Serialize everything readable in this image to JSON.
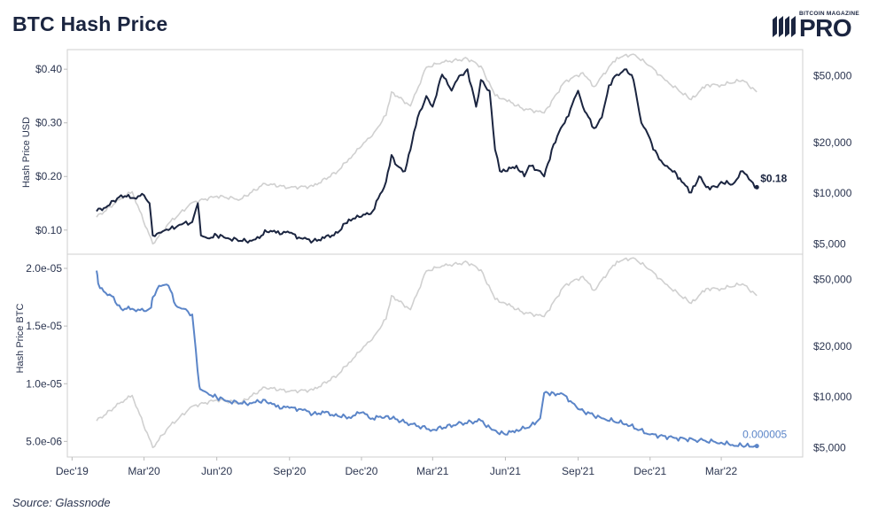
{
  "header": {
    "title": "BTC Hash Price",
    "logo_small": "BITCOIN MAGAZINE",
    "logo_big": "PRO"
  },
  "footer": {
    "source": "Source: Glassnode"
  },
  "colors": {
    "hash_usd": "#1b2540",
    "hash_btc": "#5b85c8",
    "btc_price": "#d0d0d0",
    "grid": "#d8d8d8",
    "text": "#2b3550"
  },
  "chart_data": [
    {
      "type": "line",
      "title": "",
      "ylabel": "Hash Price USD",
      "ylabel_right": "",
      "ylim": [
        0.06,
        0.43
      ],
      "y_ticks": [
        0.1,
        0.2,
        0.3,
        0.4
      ],
      "y_tick_labels": [
        "$0.10",
        "$0.20",
        "$0.30",
        "$0.40"
      ],
      "y_right_scale": "log",
      "y_right_lim": [
        4500,
        68000
      ],
      "y_right_ticks": [
        5000,
        10000,
        20000,
        50000
      ],
      "y_right_tick_labels": [
        "$5,000",
        "$10,000",
        "$20,000",
        "$50,000"
      ],
      "end_label": "$0.18",
      "series": [
        {
          "axis": "left",
          "x": [
            "2020-01-01",
            "2020-01-15",
            "2020-02-01",
            "2020-02-15",
            "2020-03-01",
            "2020-03-08",
            "2020-03-12",
            "2020-03-20",
            "2020-04-01",
            "2020-04-15",
            "2020-05-01",
            "2020-05-08",
            "2020-05-12",
            "2020-05-20",
            "2020-06-01",
            "2020-06-15",
            "2020-07-01",
            "2020-07-15",
            "2020-07-25",
            "2020-08-01",
            "2020-08-15",
            "2020-09-01",
            "2020-09-15",
            "2020-10-01",
            "2020-10-15",
            "2020-11-01",
            "2020-11-15",
            "2020-12-01",
            "2020-12-15",
            "2021-01-01",
            "2021-01-08",
            "2021-01-15",
            "2021-01-25",
            "2021-02-01",
            "2021-02-10",
            "2021-02-21",
            "2021-03-01",
            "2021-03-13",
            "2021-03-25",
            "2021-04-01",
            "2021-04-14",
            "2021-04-25",
            "2021-05-01",
            "2021-05-12",
            "2021-05-19",
            "2021-05-25",
            "2021-06-01",
            "2021-06-15",
            "2021-06-25",
            "2021-07-01",
            "2021-07-15",
            "2021-07-20",
            "2021-08-01",
            "2021-08-10",
            "2021-08-15",
            "2021-09-01",
            "2021-09-07",
            "2021-09-21",
            "2021-10-01",
            "2021-10-10",
            "2021-10-20",
            "2021-11-01",
            "2021-11-10",
            "2021-11-20",
            "2021-12-01",
            "2021-12-05",
            "2021-12-20",
            "2022-01-01",
            "2022-01-10",
            "2022-01-22",
            "2022-02-01",
            "2022-02-10",
            "2022-02-24",
            "2022-03-01",
            "2022-03-15",
            "2022-03-28",
            "2022-04-05",
            "2022-04-15"
          ],
          "values": [
            0.135,
            0.145,
            0.165,
            0.16,
            0.165,
            0.15,
            0.09,
            0.095,
            0.1,
            0.11,
            0.115,
            0.15,
            0.09,
            0.085,
            0.09,
            0.085,
            0.08,
            0.08,
            0.085,
            0.1,
            0.095,
            0.095,
            0.085,
            0.08,
            0.085,
            0.095,
            0.12,
            0.125,
            0.135,
            0.19,
            0.24,
            0.22,
            0.21,
            0.25,
            0.31,
            0.35,
            0.33,
            0.39,
            0.36,
            0.38,
            0.4,
            0.33,
            0.38,
            0.36,
            0.25,
            0.21,
            0.21,
            0.22,
            0.2,
            0.22,
            0.21,
            0.2,
            0.26,
            0.29,
            0.3,
            0.36,
            0.33,
            0.29,
            0.31,
            0.37,
            0.39,
            0.4,
            0.38,
            0.3,
            0.27,
            0.25,
            0.22,
            0.21,
            0.19,
            0.17,
            0.2,
            0.18,
            0.18,
            0.19,
            0.185,
            0.21,
            0.195,
            0.18
          ]
        },
        {
          "axis": "right",
          "x": [
            "2020-01-01",
            "2020-02-01",
            "2020-02-15",
            "2020-03-12",
            "2020-04-01",
            "2020-05-01",
            "2020-06-01",
            "2020-07-01",
            "2020-08-01",
            "2020-09-01",
            "2020-10-01",
            "2020-11-01",
            "2020-11-15",
            "2020-12-01",
            "2020-12-17",
            "2021-01-01",
            "2021-01-08",
            "2021-02-01",
            "2021-02-21",
            "2021-03-13",
            "2021-04-14",
            "2021-05-01",
            "2021-05-19",
            "2021-06-01",
            "2021-06-22",
            "2021-07-20",
            "2021-08-15",
            "2021-09-07",
            "2021-09-21",
            "2021-10-20",
            "2021-11-10",
            "2021-12-01",
            "2021-12-20",
            "2022-01-22",
            "2022-02-10",
            "2022-03-01",
            "2022-03-28",
            "2022-04-15"
          ],
          "values": [
            7200,
            9300,
            10200,
            5000,
            6600,
            8800,
            9600,
            9200,
            11400,
            10800,
            11000,
            13500,
            16000,
            19000,
            23000,
            29000,
            40000,
            33000,
            56000,
            60000,
            63000,
            57000,
            38000,
            36000,
            32000,
            30000,
            46000,
            52000,
            43000,
            64000,
            67000,
            57000,
            47000,
            36000,
            44000,
            44000,
            47000,
            40000
          ]
        }
      ]
    },
    {
      "type": "line",
      "title": "",
      "ylabel": "Hash Price BTC",
      "ylabel_right": "",
      "ylim": [
        3.8e-06,
        2.1e-05
      ],
      "y_ticks": [
        5e-06,
        1e-05,
        1.5e-05,
        2e-05
      ],
      "y_tick_labels": [
        "5.0e-06",
        "1.0e-05",
        "1.5e-05",
        "2.0e-05"
      ],
      "y_right_scale": "log",
      "y_right_lim": [
        4500,
        68000
      ],
      "y_right_ticks": [
        5000,
        10000,
        20000,
        50000
      ],
      "y_right_tick_labels": [
        "$5,000",
        "$10,000",
        "$20,000",
        "$50,000"
      ],
      "end_label": "0.000005",
      "x_tick_dates": [
        "2019-12-01",
        "2020-03-01",
        "2020-06-01",
        "2020-09-01",
        "2020-12-01",
        "2021-03-01",
        "2021-06-01",
        "2021-09-01",
        "2021-12-01",
        "2022-03-01"
      ],
      "x_tick_labels": [
        "Dec'19",
        "Mar'20",
        "Jun'20",
        "Sep'20",
        "Dec'20",
        "Mar'21",
        "Jun'21",
        "Sep'21",
        "Dec'21",
        "Mar'22"
      ],
      "series": [
        {
          "axis": "left",
          "x": [
            "2020-01-01",
            "2020-01-03",
            "2020-01-10",
            "2020-01-20",
            "2020-02-01",
            "2020-02-15",
            "2020-03-01",
            "2020-03-10",
            "2020-03-12",
            "2020-03-20",
            "2020-04-01",
            "2020-04-10",
            "2020-04-20",
            "2020-05-01",
            "2020-05-10",
            "2020-05-12",
            "2020-05-20",
            "2020-06-01",
            "2020-06-15",
            "2020-07-01",
            "2020-07-15",
            "2020-08-01",
            "2020-08-15",
            "2020-09-01",
            "2020-09-15",
            "2020-10-01",
            "2020-10-15",
            "2020-11-01",
            "2020-11-15",
            "2020-12-01",
            "2020-12-15",
            "2021-01-01",
            "2021-02-01",
            "2021-03-01",
            "2021-04-01",
            "2021-05-01",
            "2021-05-15",
            "2021-06-01",
            "2021-06-15",
            "2021-07-01",
            "2021-07-15",
            "2021-07-20",
            "2021-08-01",
            "2021-08-15",
            "2021-09-01",
            "2021-10-01",
            "2021-11-01",
            "2021-12-01",
            "2022-01-01",
            "2022-02-01",
            "2022-03-01",
            "2022-03-15",
            "2022-04-01",
            "2022-04-15"
          ],
          "values": [
            1.98e-05,
            1.87e-05,
            1.8e-05,
            1.76e-05,
            1.65e-05,
            1.65e-05,
            1.63e-05,
            1.66e-05,
            1.75e-05,
            1.85e-05,
            1.85e-05,
            1.68e-05,
            1.65e-05,
            1.6e-05,
            9.8e-06,
            9.5e-06,
            9.2e-06,
            8.8e-06,
            8.5e-06,
            8.3e-06,
            8.3e-06,
            8.6e-06,
            8e-06,
            7.9e-06,
            7.8e-06,
            7.4e-06,
            7.5e-06,
            7.2e-06,
            7.1e-06,
            7.5e-06,
            7e-06,
            7.2e-06,
            6.5e-06,
            6e-06,
            6.5e-06,
            6.8e-06,
            6e-06,
            5.6e-06,
            6e-06,
            6.2e-06,
            7e-06,
            9.2e-06,
            9.2e-06,
            9e-06,
            7.8e-06,
            7e-06,
            6.5e-06,
            5.6e-06,
            5.3e-06,
            5.1e-06,
            4.9e-06,
            4.7e-06,
            4.6e-06,
            4.6e-06
          ]
        },
        {
          "axis": "right",
          "x": [
            "2020-01-01",
            "2020-02-01",
            "2020-02-15",
            "2020-03-12",
            "2020-04-01",
            "2020-05-01",
            "2020-06-01",
            "2020-07-01",
            "2020-08-01",
            "2020-09-01",
            "2020-10-01",
            "2020-11-01",
            "2020-11-15",
            "2020-12-01",
            "2020-12-17",
            "2021-01-01",
            "2021-01-08",
            "2021-02-01",
            "2021-02-21",
            "2021-03-13",
            "2021-04-14",
            "2021-05-01",
            "2021-05-19",
            "2021-06-01",
            "2021-06-22",
            "2021-07-20",
            "2021-08-15",
            "2021-09-07",
            "2021-09-21",
            "2021-10-20",
            "2021-11-10",
            "2021-12-01",
            "2021-12-20",
            "2022-01-22",
            "2022-02-10",
            "2022-03-01",
            "2022-03-28",
            "2022-04-15"
          ],
          "values": [
            7200,
            9300,
            10200,
            5000,
            6600,
            8800,
            9600,
            9200,
            11400,
            10800,
            11000,
            13500,
            16000,
            19000,
            23000,
            29000,
            40000,
            33000,
            56000,
            60000,
            63000,
            57000,
            38000,
            36000,
            32000,
            30000,
            46000,
            52000,
            43000,
            64000,
            67000,
            57000,
            47000,
            36000,
            44000,
            44000,
            47000,
            40000
          ]
        }
      ]
    }
  ]
}
